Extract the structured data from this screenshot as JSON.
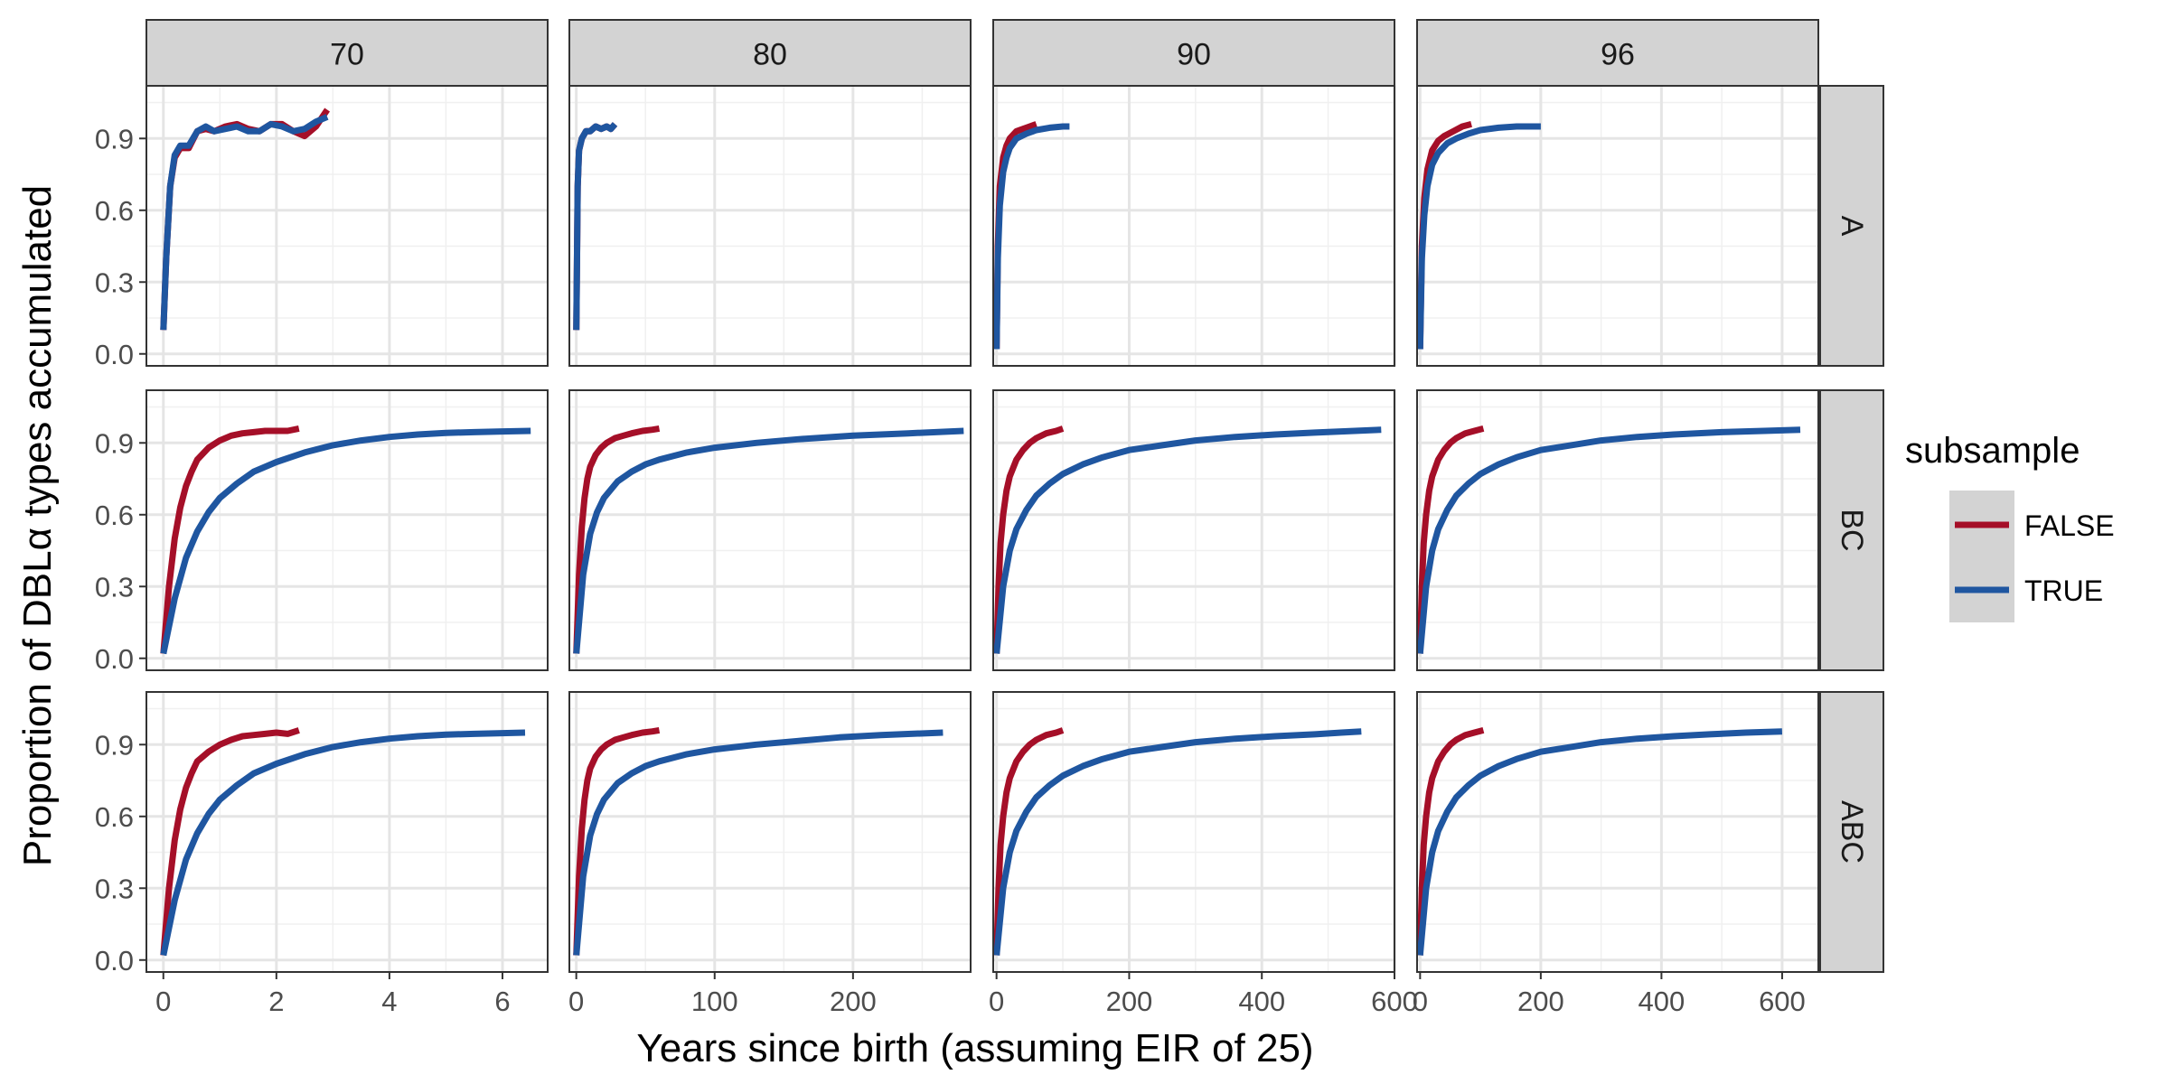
{
  "chart_data": {
    "type": "line",
    "xlabel": "Years since birth (assuming EIR of 25)",
    "ylabel": "Proportion of DBLα types accumulated",
    "facet_columns": [
      "70",
      "80",
      "90",
      "96"
    ],
    "facet_rows": [
      "A",
      "BC",
      "ABC"
    ],
    "y_ticks": [
      "0.0",
      "0.3",
      "0.6",
      "0.9"
    ],
    "ylim": [
      -0.05,
      1.12
    ],
    "x_axes": [
      {
        "xlim": [
          -0.3,
          6.8
        ],
        "ticks": [
          0,
          2,
          4,
          6
        ]
      },
      {
        "xlim": [
          -5,
          285
        ],
        "ticks": [
          0,
          100,
          200
        ]
      },
      {
        "xlim": [
          -5,
          600
        ],
        "ticks": [
          0,
          200,
          400,
          600
        ]
      },
      {
        "xlim": [
          -5,
          660
        ],
        "ticks": [
          0,
          200,
          400,
          600
        ]
      }
    ],
    "legend": {
      "title": "subsample",
      "position": "right",
      "entries": [
        {
          "name": "FALSE",
          "color": "#A50F28"
        },
        {
          "name": "TRUE",
          "color": "#1F56A0"
        }
      ]
    },
    "panels": [
      {
        "row": "A",
        "col": "70",
        "series": [
          {
            "name": "FALSE",
            "x": [
              0,
              0.05,
              0.12,
              0.2,
              0.3,
              0.45,
              0.6,
              0.75,
              0.9,
              1.1,
              1.3,
              1.5,
              1.7,
              1.9,
              2.1,
              2.3,
              2.5,
              2.7,
              2.9
            ],
            "y": [
              0.1,
              0.4,
              0.7,
              0.82,
              0.86,
              0.86,
              0.93,
              0.94,
              0.93,
              0.95,
              0.96,
              0.94,
              0.93,
              0.96,
              0.96,
              0.93,
              0.91,
              0.95,
              1.02
            ]
          },
          {
            "name": "TRUE",
            "x": [
              0,
              0.05,
              0.12,
              0.2,
              0.3,
              0.45,
              0.6,
              0.75,
              0.9,
              1.1,
              1.3,
              1.5,
              1.7,
              1.9,
              2.1,
              2.3,
              2.5,
              2.7,
              2.9
            ],
            "y": [
              0.1,
              0.4,
              0.7,
              0.83,
              0.87,
              0.87,
              0.93,
              0.95,
              0.93,
              0.94,
              0.95,
              0.93,
              0.93,
              0.96,
              0.95,
              0.93,
              0.94,
              0.97,
              0.99
            ]
          }
        ]
      },
      {
        "row": "A",
        "col": "80",
        "series": [
          {
            "name": "FALSE",
            "x": [
              0,
              1,
              2,
              4,
              7,
              10,
              14,
              18,
              22,
              25,
              28
            ],
            "y": [
              0.1,
              0.7,
              0.85,
              0.9,
              0.93,
              0.93,
              0.95,
              0.94,
              0.95,
              0.94,
              0.96
            ]
          },
          {
            "name": "TRUE",
            "x": [
              0,
              1,
              2,
              4,
              7,
              10,
              14,
              18,
              22,
              25,
              28
            ],
            "y": [
              0.1,
              0.7,
              0.85,
              0.9,
              0.93,
              0.93,
              0.95,
              0.94,
              0.95,
              0.94,
              0.96
            ]
          }
        ]
      },
      {
        "row": "A",
        "col": "90",
        "series": [
          {
            "name": "FALSE",
            "x": [
              0,
              2,
              5,
              10,
              15,
              20,
              30,
              40,
              50,
              60
            ],
            "y": [
              0.02,
              0.45,
              0.7,
              0.82,
              0.87,
              0.9,
              0.93,
              0.94,
              0.95,
              0.96
            ]
          },
          {
            "name": "TRUE",
            "x": [
              0,
              2,
              5,
              10,
              15,
              20,
              30,
              45,
              60,
              80,
              100,
              110
            ],
            "y": [
              0.02,
              0.4,
              0.62,
              0.76,
              0.82,
              0.86,
              0.9,
              0.92,
              0.935,
              0.945,
              0.95,
              0.95
            ]
          }
        ]
      },
      {
        "row": "A",
        "col": "96",
        "series": [
          {
            "name": "FALSE",
            "x": [
              0,
              3,
              7,
              12,
              20,
              30,
              40,
              55,
              70,
              85
            ],
            "y": [
              0.02,
              0.45,
              0.65,
              0.77,
              0.85,
              0.89,
              0.91,
              0.93,
              0.95,
              0.96
            ]
          },
          {
            "name": "TRUE",
            "x": [
              0,
              3,
              7,
              12,
              20,
              30,
              45,
              60,
              80,
              100,
              130,
              160,
              200
            ],
            "y": [
              0.02,
              0.4,
              0.58,
              0.7,
              0.79,
              0.84,
              0.88,
              0.9,
              0.92,
              0.935,
              0.945,
              0.95,
              0.95
            ]
          }
        ]
      },
      {
        "row": "BC",
        "col": "70",
        "series": [
          {
            "name": "FALSE",
            "x": [
              0,
              0.1,
              0.2,
              0.3,
              0.4,
              0.5,
              0.6,
              0.8,
              1.0,
              1.2,
              1.4,
              1.6,
              1.8,
              2.0,
              2.2,
              2.4
            ],
            "y": [
              0.02,
              0.3,
              0.5,
              0.63,
              0.72,
              0.78,
              0.83,
              0.88,
              0.91,
              0.93,
              0.94,
              0.945,
              0.95,
              0.95,
              0.95,
              0.96
            ]
          },
          {
            "name": "TRUE",
            "x": [
              0,
              0.2,
              0.4,
              0.6,
              0.8,
              1.0,
              1.3,
              1.6,
              2.0,
              2.5,
              3.0,
              3.5,
              4.0,
              4.5,
              5.0,
              5.5,
              6.0,
              6.5
            ],
            "y": [
              0.02,
              0.25,
              0.42,
              0.53,
              0.61,
              0.67,
              0.73,
              0.78,
              0.82,
              0.86,
              0.89,
              0.91,
              0.925,
              0.935,
              0.942,
              0.945,
              0.948,
              0.95
            ]
          }
        ]
      },
      {
        "row": "BC",
        "col": "80",
        "series": [
          {
            "name": "FALSE",
            "x": [
              0,
              2,
              4,
              6,
              8,
              10,
              14,
              18,
              22,
              28,
              34,
              40,
              48,
              55,
              60
            ],
            "y": [
              0.02,
              0.35,
              0.55,
              0.67,
              0.75,
              0.8,
              0.85,
              0.88,
              0.9,
              0.92,
              0.93,
              0.94,
              0.95,
              0.955,
              0.96
            ]
          },
          {
            "name": "TRUE",
            "x": [
              0,
              5,
              10,
              15,
              20,
              30,
              40,
              50,
              60,
              80,
              100,
              130,
              160,
              200,
              240,
              280
            ],
            "y": [
              0.02,
              0.35,
              0.52,
              0.61,
              0.67,
              0.74,
              0.78,
              0.81,
              0.83,
              0.86,
              0.88,
              0.9,
              0.915,
              0.93,
              0.94,
              0.95
            ]
          }
        ]
      },
      {
        "row": "BC",
        "col": "90",
        "series": [
          {
            "name": "FALSE",
            "x": [
              0,
              3,
              6,
              10,
              15,
              20,
              30,
              40,
              50,
              60,
              75,
              90,
              100
            ],
            "y": [
              0.02,
              0.3,
              0.48,
              0.6,
              0.7,
              0.76,
              0.83,
              0.87,
              0.9,
              0.92,
              0.94,
              0.95,
              0.96
            ]
          },
          {
            "name": "TRUE",
            "x": [
              0,
              10,
              20,
              30,
              45,
              60,
              80,
              100,
              130,
              160,
              200,
              250,
              300,
              360,
              420,
              480,
              540,
              580
            ],
            "y": [
              0.02,
              0.3,
              0.45,
              0.54,
              0.62,
              0.68,
              0.73,
              0.77,
              0.81,
              0.84,
              0.87,
              0.89,
              0.91,
              0.925,
              0.935,
              0.943,
              0.95,
              0.955
            ]
          }
        ]
      },
      {
        "row": "BC",
        "col": "96",
        "series": [
          {
            "name": "FALSE",
            "x": [
              0,
              3,
              6,
              10,
              15,
              20,
              30,
              40,
              50,
              60,
              75,
              90,
              105
            ],
            "y": [
              0.02,
              0.3,
              0.48,
              0.6,
              0.7,
              0.76,
              0.83,
              0.87,
              0.9,
              0.92,
              0.94,
              0.95,
              0.96
            ]
          },
          {
            "name": "TRUE",
            "x": [
              0,
              10,
              20,
              30,
              45,
              60,
              80,
              100,
              130,
              160,
              200,
              250,
              300,
              360,
              420,
              500,
              570,
              630
            ],
            "y": [
              0.02,
              0.3,
              0.45,
              0.54,
              0.62,
              0.68,
              0.73,
              0.77,
              0.81,
              0.84,
              0.87,
              0.89,
              0.91,
              0.925,
              0.935,
              0.945,
              0.95,
              0.955
            ]
          }
        ]
      },
      {
        "row": "ABC",
        "col": "70",
        "series": [
          {
            "name": "FALSE",
            "x": [
              0,
              0.1,
              0.2,
              0.3,
              0.4,
              0.5,
              0.6,
              0.8,
              1.0,
              1.2,
              1.4,
              1.6,
              1.8,
              2.0,
              2.2,
              2.4
            ],
            "y": [
              0.02,
              0.3,
              0.5,
              0.63,
              0.72,
              0.78,
              0.83,
              0.87,
              0.9,
              0.92,
              0.935,
              0.94,
              0.945,
              0.95,
              0.945,
              0.96
            ]
          },
          {
            "name": "TRUE",
            "x": [
              0,
              0.2,
              0.4,
              0.6,
              0.8,
              1.0,
              1.3,
              1.6,
              2.0,
              2.5,
              3.0,
              3.5,
              4.0,
              4.5,
              5.0,
              5.5,
              6.0,
              6.4
            ],
            "y": [
              0.02,
              0.25,
              0.42,
              0.53,
              0.61,
              0.67,
              0.73,
              0.78,
              0.82,
              0.86,
              0.89,
              0.91,
              0.925,
              0.935,
              0.942,
              0.945,
              0.948,
              0.95
            ]
          }
        ]
      },
      {
        "row": "ABC",
        "col": "80",
        "series": [
          {
            "name": "FALSE",
            "x": [
              0,
              2,
              4,
              6,
              8,
              10,
              14,
              18,
              22,
              28,
              34,
              40,
              48,
              55,
              60
            ],
            "y": [
              0.02,
              0.35,
              0.55,
              0.67,
              0.75,
              0.8,
              0.85,
              0.88,
              0.9,
              0.92,
              0.93,
              0.94,
              0.95,
              0.955,
              0.96
            ]
          },
          {
            "name": "TRUE",
            "x": [
              0,
              5,
              10,
              15,
              20,
              30,
              40,
              50,
              60,
              80,
              100,
              130,
              160,
              190,
              220,
              265
            ],
            "y": [
              0.02,
              0.35,
              0.52,
              0.61,
              0.67,
              0.74,
              0.78,
              0.81,
              0.83,
              0.86,
              0.88,
              0.9,
              0.915,
              0.93,
              0.94,
              0.95
            ]
          }
        ]
      },
      {
        "row": "ABC",
        "col": "90",
        "series": [
          {
            "name": "FALSE",
            "x": [
              0,
              3,
              6,
              10,
              15,
              20,
              30,
              40,
              50,
              60,
              75,
              90,
              100
            ],
            "y": [
              0.02,
              0.3,
              0.48,
              0.6,
              0.7,
              0.76,
              0.83,
              0.87,
              0.9,
              0.92,
              0.94,
              0.95,
              0.96
            ]
          },
          {
            "name": "TRUE",
            "x": [
              0,
              10,
              20,
              30,
              45,
              60,
              80,
              100,
              130,
              160,
              200,
              250,
              300,
              360,
              420,
              480,
              520,
              550
            ],
            "y": [
              0.02,
              0.3,
              0.45,
              0.54,
              0.62,
              0.68,
              0.73,
              0.77,
              0.81,
              0.84,
              0.87,
              0.89,
              0.91,
              0.925,
              0.935,
              0.943,
              0.95,
              0.955
            ]
          }
        ]
      },
      {
        "row": "ABC",
        "col": "96",
        "series": [
          {
            "name": "FALSE",
            "x": [
              0,
              3,
              6,
              10,
              15,
              20,
              30,
              40,
              50,
              60,
              75,
              90,
              105
            ],
            "y": [
              0.02,
              0.3,
              0.48,
              0.6,
              0.7,
              0.76,
              0.83,
              0.87,
              0.9,
              0.92,
              0.94,
              0.95,
              0.96
            ]
          },
          {
            "name": "TRUE",
            "x": [
              0,
              10,
              20,
              30,
              45,
              60,
              80,
              100,
              130,
              160,
              200,
              250,
              300,
              360,
              420,
              480,
              540,
              600
            ],
            "y": [
              0.02,
              0.3,
              0.45,
              0.54,
              0.62,
              0.68,
              0.73,
              0.77,
              0.81,
              0.84,
              0.87,
              0.89,
              0.91,
              0.925,
              0.935,
              0.943,
              0.95,
              0.955
            ]
          }
        ]
      }
    ]
  }
}
